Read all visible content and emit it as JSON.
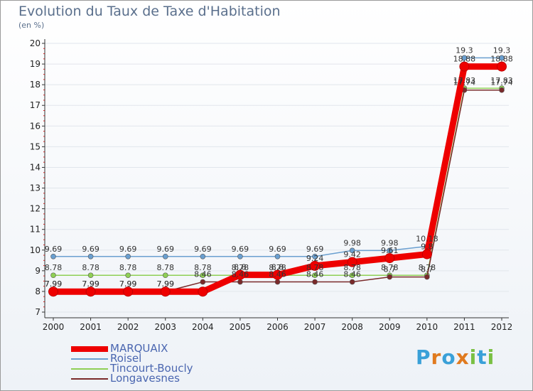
{
  "chart_data": {
    "type": "line",
    "title": "Evolution du Taux de Taxe d'Habitation",
    "ylabel": "(en %)",
    "xlabel": "",
    "ylim": [
      7,
      20
    ],
    "yticks": [
      7,
      8,
      9,
      10,
      11,
      12,
      13,
      14,
      15,
      16,
      17,
      18,
      19,
      20
    ],
    "x": [
      "2000",
      "2001",
      "2002",
      "2003",
      "2004",
      "2005",
      "2006",
      "2007",
      "2008",
      "2009",
      "2010",
      "2011",
      "2012"
    ],
    "series": [
      {
        "name": "MARQUAIX",
        "color": "#ee0000",
        "values": [
          7.99,
          7.99,
          7.99,
          7.99,
          7.99,
          8.8,
          8.8,
          9.24,
          9.42,
          9.61,
          9.8,
          18.88,
          18.88
        ],
        "labels": [
          "7.99",
          "7.99",
          "7.99",
          "7.99",
          "",
          "8.8",
          "8.8",
          "9.24",
          "9.42",
          "9.61",
          "9.8",
          "18.88",
          "18.88"
        ]
      },
      {
        "name": "Roisel",
        "color": "#6a9fd0",
        "values": [
          9.69,
          9.69,
          9.69,
          9.69,
          9.69,
          9.69,
          9.69,
          9.69,
          9.98,
          9.98,
          10.18,
          19.3,
          19.3
        ],
        "labels": [
          "9.69",
          "9.69",
          "9.69",
          "9.69",
          "9.69",
          "9.69",
          "9.69",
          "9.69",
          "9.98",
          "9.98",
          "10.18",
          "19.3",
          "19.3"
        ]
      },
      {
        "name": "Tincourt-Boucly",
        "color": "#8fcf55",
        "values": [
          8.78,
          8.78,
          8.78,
          8.78,
          8.78,
          8.78,
          8.78,
          8.78,
          8.78,
          8.78,
          8.78,
          17.83,
          17.83
        ],
        "labels": [
          "8.78",
          "8.78",
          "8.78",
          "8.78",
          "8.78",
          "8.78",
          "8.78",
          "8.78",
          "8.78",
          "8.78",
          "8.78",
          "17.83",
          "17.83"
        ]
      },
      {
        "name": "Longavesnes",
        "color": "#7a2a2a",
        "values": [
          7.99,
          7.99,
          7.99,
          7.99,
          8.46,
          8.46,
          8.46,
          8.46,
          8.46,
          8.7,
          8.7,
          17.74,
          17.74
        ],
        "labels": [
          "7.99",
          "7.99",
          "7.99",
          "7.99",
          "8.46",
          "8.46",
          "8.46",
          "8.46",
          "8.46",
          "8.7",
          "8.7",
          "17.74",
          "17.74"
        ]
      }
    ]
  },
  "logo": {
    "letters": [
      "P",
      "r",
      "o",
      "x",
      "i",
      "t",
      "i"
    ],
    "colors": [
      "#3aa0d8",
      "#e07a1f",
      "#3aa0d8",
      "#e07a1f",
      "#7ac043",
      "#3aa0d8",
      "#7ac043"
    ]
  }
}
